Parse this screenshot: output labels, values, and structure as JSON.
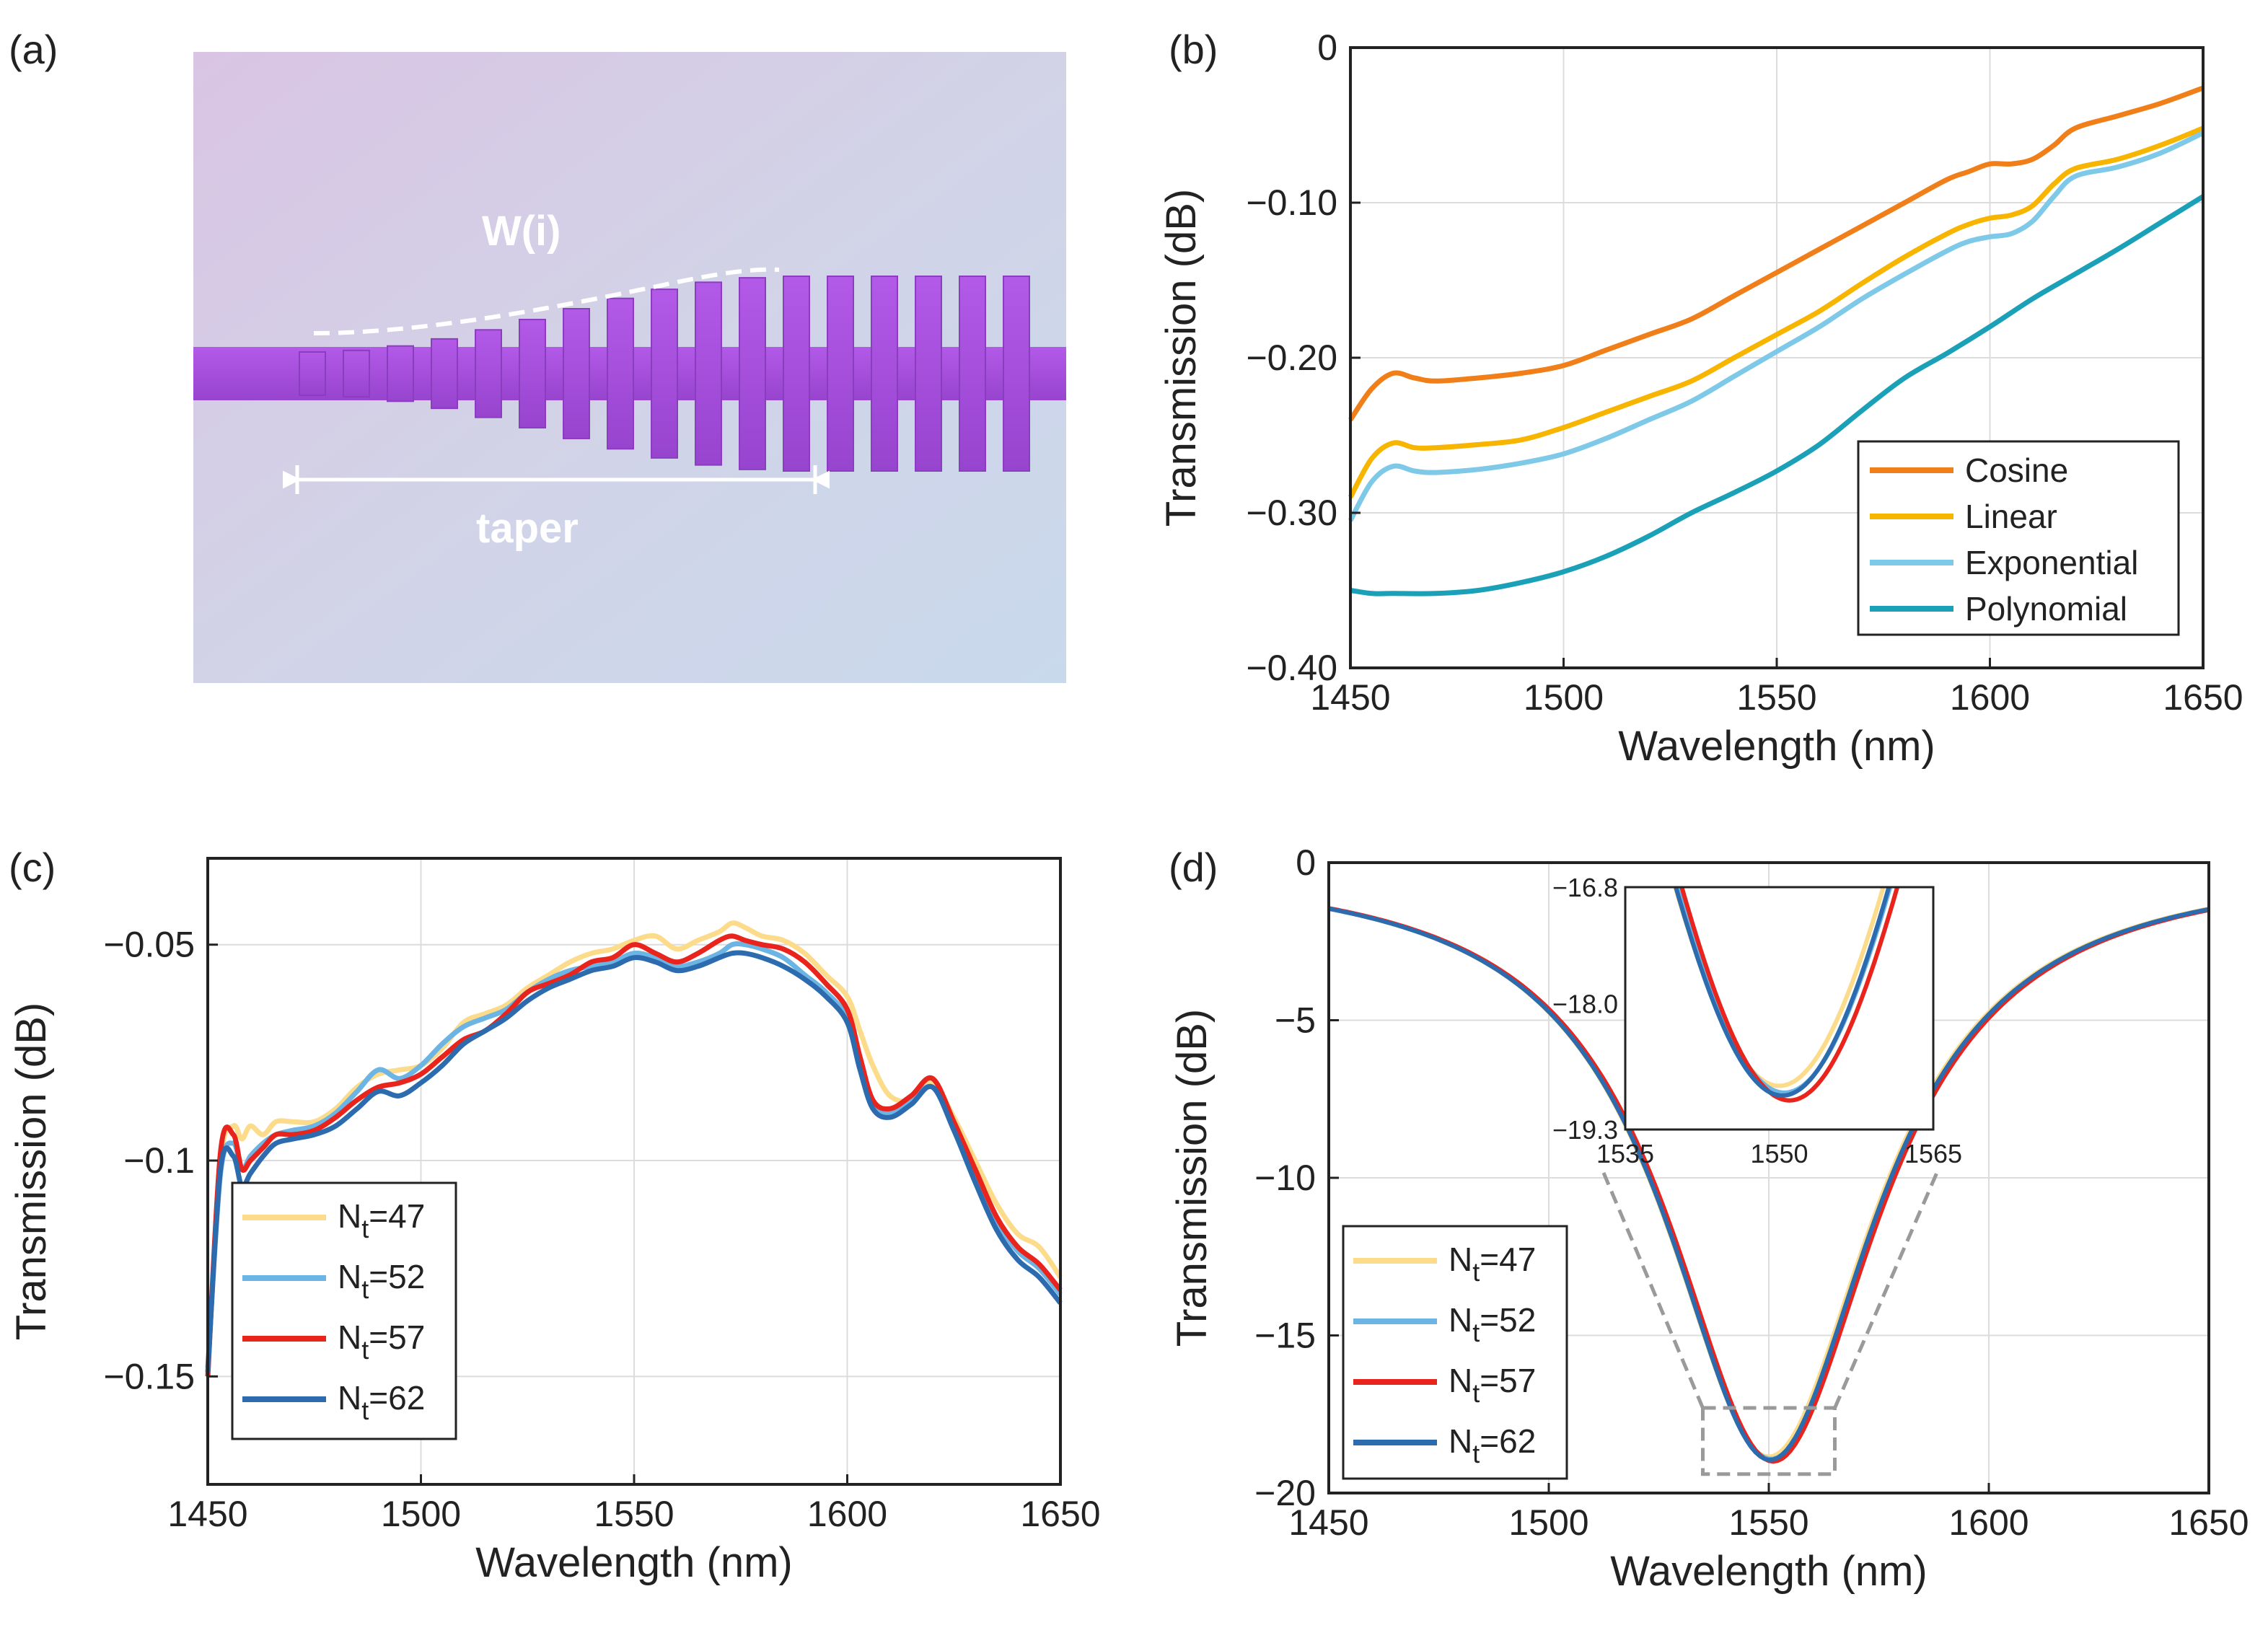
{
  "colors": {
    "cosine": "#F07F1A",
    "linear": "#F7B500",
    "exponential": "#7EC8E8",
    "polynomial": "#1AA1B8",
    "nt47": "#FCDB8A",
    "nt52": "#6BB4E4",
    "nt57": "#E8241D",
    "nt62": "#2D6BAF",
    "device": "#A54EDB"
  },
  "panel_a": {
    "label": "(a)",
    "width_label": "W(i)",
    "taper_label": "taper",
    "description_icon": "subwavelength-grating-taper-micrograph"
  },
  "chart_data": [
    {
      "id": "b",
      "panel_label": "(b)",
      "type": "line",
      "xlabel": "Wavelength (nm)",
      "ylabel": "Transmission (dB)",
      "xlim": [
        1450,
        1650
      ],
      "ylim": [
        -0.4,
        0
      ],
      "xticks": [
        1450,
        1500,
        1550,
        1600,
        1650
      ],
      "yticks": [
        0,
        -0.1,
        -0.2,
        -0.3,
        -0.4
      ],
      "ytick_labels": [
        "0",
        "−0.10",
        "−0.20",
        "−0.30",
        "−0.40"
      ],
      "grid": true,
      "legend_position": "bottom-right",
      "series": [
        {
          "name": "Cosine",
          "color_key": "cosine",
          "x": [
            1450,
            1455,
            1460,
            1465,
            1470,
            1480,
            1490,
            1500,
            1510,
            1520,
            1530,
            1540,
            1550,
            1560,
            1570,
            1580,
            1590,
            1595,
            1600,
            1605,
            1610,
            1615,
            1620,
            1630,
            1640,
            1650
          ],
          "y": [
            -0.24,
            -0.22,
            -0.21,
            -0.213,
            -0.215,
            -0.213,
            -0.21,
            -0.205,
            -0.195,
            -0.185,
            -0.175,
            -0.16,
            -0.145,
            -0.13,
            -0.115,
            -0.1,
            -0.085,
            -0.08,
            -0.075,
            -0.075,
            -0.072,
            -0.063,
            -0.052,
            -0.044,
            -0.036,
            -0.026
          ]
        },
        {
          "name": "Linear",
          "color_key": "linear",
          "x": [
            1450,
            1455,
            1460,
            1465,
            1470,
            1480,
            1490,
            1500,
            1510,
            1520,
            1530,
            1540,
            1550,
            1560,
            1570,
            1580,
            1590,
            1595,
            1600,
            1605,
            1610,
            1615,
            1620,
            1630,
            1640,
            1650
          ],
          "y": [
            -0.29,
            -0.265,
            -0.255,
            -0.258,
            -0.258,
            -0.256,
            -0.253,
            -0.245,
            -0.235,
            -0.225,
            -0.215,
            -0.2,
            -0.185,
            -0.17,
            -0.152,
            -0.135,
            -0.12,
            -0.114,
            -0.11,
            -0.108,
            -0.102,
            -0.088,
            -0.078,
            -0.072,
            -0.063,
            -0.052
          ]
        },
        {
          "name": "Exponential",
          "color_key": "exponential",
          "x": [
            1450,
            1455,
            1460,
            1465,
            1470,
            1480,
            1490,
            1500,
            1510,
            1520,
            1530,
            1540,
            1550,
            1560,
            1570,
            1580,
            1590,
            1595,
            1600,
            1605,
            1610,
            1615,
            1620,
            1630,
            1640,
            1650
          ],
          "y": [
            -0.305,
            -0.28,
            -0.27,
            -0.273,
            -0.274,
            -0.272,
            -0.268,
            -0.262,
            -0.252,
            -0.24,
            -0.228,
            -0.212,
            -0.196,
            -0.18,
            -0.162,
            -0.146,
            -0.131,
            -0.125,
            -0.122,
            -0.12,
            -0.112,
            -0.096,
            -0.083,
            -0.077,
            -0.068,
            -0.055
          ]
        },
        {
          "name": "Polynomial",
          "color_key": "polynomial",
          "x": [
            1450,
            1455,
            1460,
            1470,
            1480,
            1490,
            1500,
            1510,
            1520,
            1530,
            1540,
            1550,
            1560,
            1570,
            1580,
            1590,
            1600,
            1610,
            1620,
            1630,
            1640,
            1650
          ],
          "y": [
            -0.35,
            -0.352,
            -0.352,
            -0.352,
            -0.35,
            -0.345,
            -0.338,
            -0.328,
            -0.315,
            -0.3,
            -0.287,
            -0.273,
            -0.256,
            -0.234,
            -0.213,
            -0.197,
            -0.18,
            -0.162,
            -0.146,
            -0.13,
            -0.113,
            -0.096
          ]
        }
      ]
    },
    {
      "id": "c",
      "panel_label": "(c)",
      "type": "line",
      "xlabel": "Wavelength (nm)",
      "ylabel": "Transmission (dB)",
      "xlim": [
        1450,
        1650
      ],
      "ylim": [
        -0.175,
        -0.03
      ],
      "xticks": [
        1450,
        1500,
        1550,
        1600,
        1650
      ],
      "yticks": [
        -0.05,
        -0.1,
        -0.15
      ],
      "ytick_labels": [
        "−0.05",
        "−0.1",
        "−0.15"
      ],
      "grid": true,
      "legend_position": "bottom-left",
      "series": [
        {
          "name": "Nt=47",
          "color_key": "nt47",
          "x": [
            1450,
            1453,
            1456,
            1458,
            1460,
            1463,
            1466,
            1470,
            1475,
            1480,
            1485,
            1490,
            1495,
            1500,
            1505,
            1510,
            1515,
            1520,
            1525,
            1530,
            1535,
            1540,
            1545,
            1550,
            1555,
            1560,
            1565,
            1570,
            1573,
            1576,
            1580,
            1585,
            1590,
            1595,
            1600,
            1603,
            1606,
            1610,
            1615,
            1620,
            1625,
            1630,
            1635,
            1640,
            1645,
            1650
          ],
          "y": [
            -0.15,
            -0.1,
            -0.092,
            -0.095,
            -0.092,
            -0.094,
            -0.091,
            -0.091,
            -0.091,
            -0.088,
            -0.083,
            -0.08,
            -0.079,
            -0.078,
            -0.074,
            -0.068,
            -0.066,
            -0.064,
            -0.06,
            -0.057,
            -0.054,
            -0.052,
            -0.051,
            -0.049,
            -0.048,
            -0.051,
            -0.049,
            -0.047,
            -0.045,
            -0.046,
            -0.048,
            -0.049,
            -0.052,
            -0.057,
            -0.062,
            -0.07,
            -0.078,
            -0.085,
            -0.086,
            -0.082,
            -0.09,
            -0.1,
            -0.11,
            -0.117,
            -0.12,
            -0.127
          ]
        },
        {
          "name": "Nt=52",
          "color_key": "nt52",
          "x": [
            1450,
            1453,
            1456,
            1458,
            1460,
            1463,
            1466,
            1470,
            1475,
            1480,
            1485,
            1490,
            1495,
            1500,
            1505,
            1510,
            1515,
            1520,
            1525,
            1530,
            1535,
            1540,
            1545,
            1550,
            1555,
            1560,
            1565,
            1570,
            1573,
            1576,
            1580,
            1585,
            1590,
            1595,
            1600,
            1603,
            1606,
            1610,
            1615,
            1620,
            1625,
            1630,
            1635,
            1640,
            1645,
            1650
          ],
          "y": [
            -0.148,
            -0.103,
            -0.096,
            -0.102,
            -0.099,
            -0.096,
            -0.094,
            -0.093,
            -0.092,
            -0.089,
            -0.084,
            -0.079,
            -0.081,
            -0.078,
            -0.073,
            -0.069,
            -0.067,
            -0.065,
            -0.061,
            -0.058,
            -0.056,
            -0.055,
            -0.054,
            -0.052,
            -0.053,
            -0.055,
            -0.054,
            -0.052,
            -0.05,
            -0.05,
            -0.051,
            -0.053,
            -0.057,
            -0.061,
            -0.067,
            -0.078,
            -0.087,
            -0.089,
            -0.086,
            -0.083,
            -0.092,
            -0.104,
            -0.114,
            -0.121,
            -0.125,
            -0.131
          ]
        },
        {
          "name": "Nt=57",
          "color_key": "nt57",
          "x": [
            1450,
            1453,
            1456,
            1458,
            1460,
            1463,
            1466,
            1470,
            1475,
            1480,
            1485,
            1490,
            1495,
            1500,
            1505,
            1510,
            1515,
            1520,
            1525,
            1530,
            1535,
            1540,
            1545,
            1550,
            1555,
            1560,
            1565,
            1570,
            1573,
            1576,
            1580,
            1585,
            1590,
            1595,
            1600,
            1603,
            1606,
            1610,
            1615,
            1620,
            1625,
            1630,
            1635,
            1640,
            1645,
            1650
          ],
          "y": [
            -0.15,
            -0.098,
            -0.094,
            -0.102,
            -0.1,
            -0.097,
            -0.094,
            -0.094,
            -0.093,
            -0.09,
            -0.086,
            -0.083,
            -0.082,
            -0.08,
            -0.076,
            -0.072,
            -0.07,
            -0.066,
            -0.061,
            -0.059,
            -0.057,
            -0.054,
            -0.053,
            -0.05,
            -0.052,
            -0.054,
            -0.052,
            -0.049,
            -0.048,
            -0.049,
            -0.05,
            -0.051,
            -0.054,
            -0.059,
            -0.065,
            -0.076,
            -0.086,
            -0.088,
            -0.085,
            -0.081,
            -0.091,
            -0.102,
            -0.113,
            -0.12,
            -0.124,
            -0.13
          ]
        },
        {
          "name": "Nt=62",
          "color_key": "nt62",
          "x": [
            1450,
            1453,
            1456,
            1458,
            1460,
            1463,
            1466,
            1470,
            1475,
            1480,
            1485,
            1490,
            1495,
            1500,
            1505,
            1510,
            1515,
            1520,
            1525,
            1530,
            1535,
            1540,
            1545,
            1550,
            1555,
            1560,
            1565,
            1570,
            1573,
            1576,
            1580,
            1585,
            1590,
            1595,
            1600,
            1603,
            1606,
            1610,
            1615,
            1620,
            1625,
            1630,
            1635,
            1640,
            1645,
            1650
          ],
          "y": [
            -0.149,
            -0.102,
            -0.099,
            -0.106,
            -0.103,
            -0.099,
            -0.096,
            -0.095,
            -0.094,
            -0.092,
            -0.088,
            -0.084,
            -0.085,
            -0.082,
            -0.078,
            -0.073,
            -0.07,
            -0.067,
            -0.063,
            -0.06,
            -0.058,
            -0.056,
            -0.055,
            -0.053,
            -0.054,
            -0.056,
            -0.055,
            -0.053,
            -0.052,
            -0.052,
            -0.053,
            -0.055,
            -0.058,
            -0.062,
            -0.068,
            -0.079,
            -0.088,
            -0.09,
            -0.087,
            -0.083,
            -0.093,
            -0.105,
            -0.116,
            -0.123,
            -0.127,
            -0.133
          ]
        }
      ]
    },
    {
      "id": "d",
      "panel_label": "(d)",
      "type": "line",
      "xlabel": "Wavelength (nm)",
      "ylabel": "Transmission (dB)",
      "xlim": [
        1450,
        1650
      ],
      "ylim": [
        -20,
        0
      ],
      "xticks": [
        1450,
        1500,
        1550,
        1600,
        1650
      ],
      "yticks": [
        0,
        -5,
        -10,
        -15,
        -20
      ],
      "ytick_labels": [
        "0",
        "−5",
        "−10",
        "−15",
        "−20"
      ],
      "grid": true,
      "legend_position": "bottom-left",
      "dip_model": {
        "center": 1550,
        "depth": 19.0,
        "halfwidth": 29
      },
      "series": [
        {
          "name": "Nt=47",
          "color_key": "nt47",
          "center": 1550.0,
          "depth": 18.85
        },
        {
          "name": "Nt=52",
          "color_key": "nt52",
          "center": 1550.5,
          "depth": 18.92
        },
        {
          "name": "Nt=57",
          "color_key": "nt57",
          "center": 1551.0,
          "depth": 19.0
        },
        {
          "name": "Nt=62",
          "color_key": "nt62",
          "center": 1550.3,
          "depth": 18.95
        }
      ],
      "inset": {
        "xlim": [
          1535,
          1565
        ],
        "ylim": [
          -19.3,
          -16.8
        ],
        "xticks": [
          1535,
          1550,
          1565
        ],
        "yticks": [
          -16.8,
          -18.0,
          -19.3
        ],
        "ytick_labels": [
          "−16.8",
          "−18.0",
          "−19.3"
        ],
        "zoom_box": {
          "x": [
            1535,
            1565
          ],
          "y": [
            -17.3,
            -19.4
          ]
        }
      }
    }
  ]
}
